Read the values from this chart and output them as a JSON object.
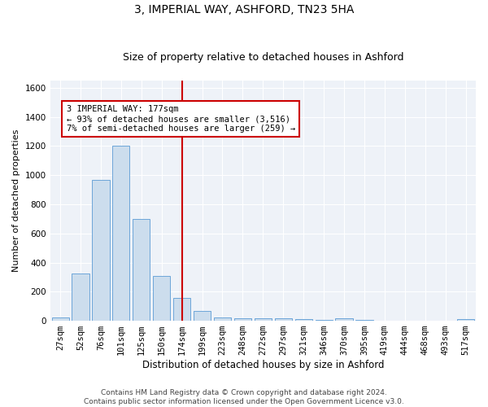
{
  "title1": "3, IMPERIAL WAY, ASHFORD, TN23 5HA",
  "title2": "Size of property relative to detached houses in Ashford",
  "xlabel": "Distribution of detached houses by size in Ashford",
  "ylabel": "Number of detached properties",
  "categories": [
    "27sqm",
    "52sqm",
    "76sqm",
    "101sqm",
    "125sqm",
    "150sqm",
    "174sqm",
    "199sqm",
    "223sqm",
    "248sqm",
    "272sqm",
    "297sqm",
    "321sqm",
    "346sqm",
    "370sqm",
    "395sqm",
    "419sqm",
    "444sqm",
    "468sqm",
    "493sqm",
    "517sqm"
  ],
  "values": [
    25,
    325,
    970,
    1200,
    700,
    310,
    155,
    65,
    25,
    15,
    15,
    20,
    10,
    5,
    15,
    5,
    3,
    3,
    3,
    3,
    10
  ],
  "bar_color": "#ccdded",
  "bar_edge_color": "#5b9bd5",
  "vline_x_index": 6,
  "vline_color": "#cc0000",
  "annotation_text": "3 IMPERIAL WAY: 177sqm\n← 93% of detached houses are smaller (3,516)\n7% of semi-detached houses are larger (259) →",
  "annotation_box_color": "#cc0000",
  "ylim": [
    0,
    1650
  ],
  "yticks": [
    0,
    200,
    400,
    600,
    800,
    1000,
    1200,
    1400,
    1600
  ],
  "bg_color": "#eef2f8",
  "footer1": "Contains HM Land Registry data © Crown copyright and database right 2024.",
  "footer2": "Contains public sector information licensed under the Open Government Licence v3.0.",
  "title1_fontsize": 10,
  "title2_fontsize": 9,
  "xlabel_fontsize": 8.5,
  "ylabel_fontsize": 8,
  "tick_fontsize": 7.5,
  "annotation_fontsize": 7.5,
  "footer_fontsize": 6.5
}
